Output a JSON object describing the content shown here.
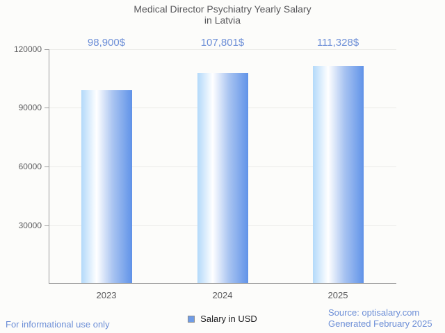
{
  "chart": {
    "title_line1": "Medical Director Psychiatry Yearly Salary",
    "title_line2": "in Latvia"
  },
  "chart_data": {
    "type": "bar",
    "title": "Medical Director Psychiatry Yearly Salary in Latvia",
    "categories": [
      "2023",
      "2024",
      "2025"
    ],
    "values": [
      98900,
      107801,
      111328
    ],
    "value_labels": [
      "98,900$",
      "107,801$",
      "111,328$"
    ],
    "series": [
      {
        "name": "Salary in USD",
        "values": [
          98900,
          107801,
          111328
        ]
      }
    ],
    "xlabel": "",
    "ylabel": "",
    "ylim": [
      0,
      120000
    ],
    "ytick_interval": 30000,
    "ytick_labels": [
      "120000",
      "90000",
      "60000",
      "30000"
    ],
    "grid": true,
    "legend_position": "bottom"
  },
  "legend": {
    "label": "Salary in USD"
  },
  "footer": {
    "disclaimer": "For informational use only",
    "source": "Source: optisalary.com",
    "generated": "Generated February 2025"
  },
  "colors": {
    "background": "#fcfcfa",
    "title_text": "#57575a",
    "axis_text": "#58585a",
    "blue_text": "#6d8fd7",
    "gridline": "#eaeae7",
    "axis_line": "#9b9b9b",
    "bar_gradient_left": "#b3d9fa",
    "bar_gradient_highlight": "#ffffff",
    "bar_gradient_right": "#6697e9",
    "legend_marker_fill": "#6f9ce6",
    "legend_marker_border": "#8a8a8a"
  }
}
